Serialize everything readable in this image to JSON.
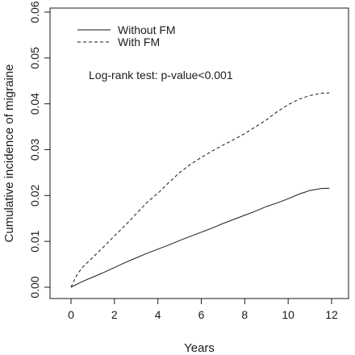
{
  "chart_data": {
    "type": "line",
    "title": "",
    "xlabel": "Years",
    "ylabel": "Cumulative incidence of migraine",
    "xlim": [
      0,
      12
    ],
    "ylim": [
      0,
      0.06
    ],
    "xticks": [
      0,
      2,
      4,
      6,
      8,
      10,
      12
    ],
    "xtick_labels": [
      "0",
      "2",
      "4",
      "6",
      "8",
      "10",
      "12"
    ],
    "yticks": [
      0,
      0.01,
      0.02,
      0.03,
      0.04,
      0.05,
      0.06
    ],
    "ytick_labels": [
      "0.00",
      "0.01",
      "0.02",
      "0.03",
      "0.04",
      "0.05",
      "0.06"
    ],
    "grid": false,
    "legend_position": "top-left",
    "annotation": "Log-rank test: p-value<0.001",
    "series": [
      {
        "name": "Without FM",
        "style": "solid",
        "x": [
          0,
          0.5,
          1,
          1.5,
          2,
          2.5,
          3,
          3.5,
          4,
          4.5,
          5,
          5.5,
          6,
          6.5,
          7,
          7.5,
          8,
          8.5,
          9,
          9.5,
          10,
          10.5,
          11,
          11.5,
          11.9
        ],
        "y": [
          0,
          0.0012,
          0.0022,
          0.0032,
          0.0043,
          0.0054,
          0.0064,
          0.0074,
          0.0083,
          0.0092,
          0.0102,
          0.0111,
          0.012,
          0.0129,
          0.0139,
          0.0148,
          0.0157,
          0.0166,
          0.0176,
          0.0184,
          0.0193,
          0.0203,
          0.0211,
          0.0215,
          0.0216
        ]
      },
      {
        "name": "With FM",
        "style": "dashed",
        "x": [
          0,
          0.25,
          0.5,
          1,
          1.5,
          2,
          2.5,
          3,
          3.5,
          4,
          4.5,
          5,
          5.5,
          6,
          6.5,
          7,
          7.5,
          8,
          8.5,
          9,
          9.5,
          10,
          10.5,
          11,
          11.5,
          11.9
        ],
        "y": [
          0,
          0.0025,
          0.0042,
          0.0065,
          0.0088,
          0.0112,
          0.0135,
          0.016,
          0.0185,
          0.0205,
          0.0228,
          0.025,
          0.0268,
          0.0283,
          0.0297,
          0.031,
          0.0322,
          0.0335,
          0.035,
          0.0365,
          0.0383,
          0.0398,
          0.041,
          0.0418,
          0.0423,
          0.0424
        ]
      }
    ]
  }
}
